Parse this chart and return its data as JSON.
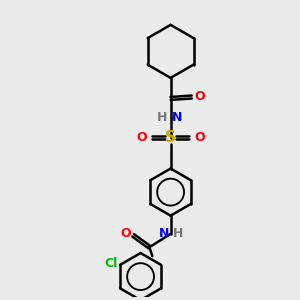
{
  "background_color": "#ebebeb",
  "line_color": "#000000",
  "lw": 1.8,
  "figsize": [
    3.0,
    3.0
  ],
  "dpi": 100,
  "atom_colors": {
    "N": "#0000ff",
    "O": "#ff0000",
    "S": "#ccaa00",
    "Cl": "#00bb00",
    "H": "#777777",
    "C": "#000000"
  },
  "xlim": [
    0,
    10
  ],
  "ylim": [
    0,
    10
  ]
}
